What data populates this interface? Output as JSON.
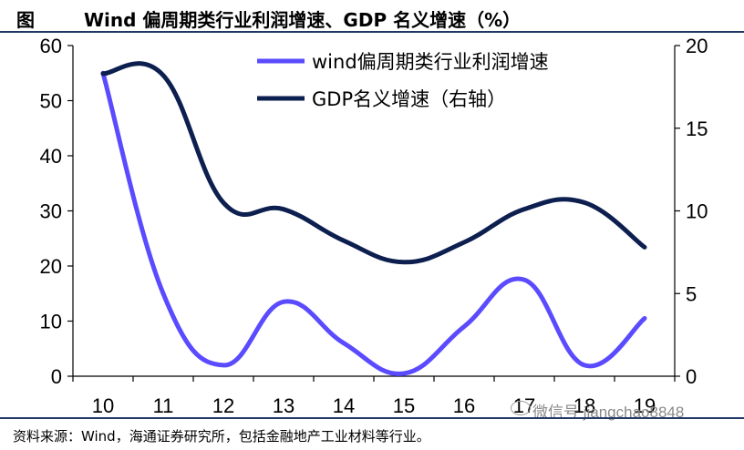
{
  "header": {
    "figure_label": "图",
    "title": "Wind 偏周期类行业利润增速、GDP 名义增速（%）"
  },
  "footer": {
    "source": "资料来源：Wind，海通证券研究所，包括金融地产工业材料等行业。"
  },
  "watermark": {
    "text": "微信号 jiangchao8848"
  },
  "colors": {
    "wind_series": "#5a4bff",
    "gdp_series": "#0d1f4f",
    "axis": "#000000"
  },
  "chart_data": {
    "type": "line",
    "title": "Wind 偏周期类行业利润增速、GDP 名义增速（%）",
    "categories": [
      "10",
      "11",
      "12",
      "13",
      "14",
      "15",
      "16",
      "17",
      "18",
      "19"
    ],
    "series": [
      {
        "name": "wind偏周期类行业利润增速",
        "axis": "left",
        "values": [
          55,
          15,
          2,
          13.5,
          6,
          0.5,
          9,
          17.5,
          2,
          10.5
        ]
      },
      {
        "name": "GDP名义增速（右轴）",
        "axis": "right",
        "values": [
          18.3,
          18.2,
          10.5,
          10.1,
          8.2,
          6.9,
          8.1,
          10.1,
          10.5,
          7.8
        ]
      }
    ],
    "left_axis": {
      "min": 0,
      "max": 60,
      "ticks": [
        "0",
        "10",
        "20",
        "30",
        "40",
        "50",
        "60"
      ]
    },
    "right_axis": {
      "min": 0,
      "max": 20,
      "ticks": [
        "0",
        "5",
        "10",
        "15",
        "20"
      ]
    },
    "legend_position": "top-right",
    "grid": false
  }
}
